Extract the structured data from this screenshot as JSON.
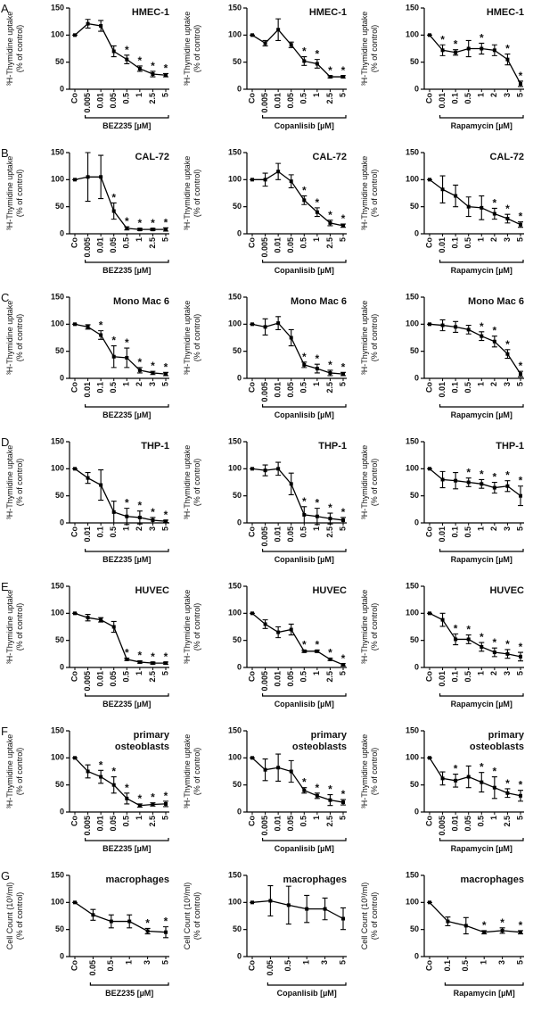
{
  "chart_data": [
    {
      "type": "line",
      "panel": "A",
      "title": [
        "HMEC-1"
      ],
      "ylabel": [
        "³H-Thymidine uptake",
        "(% of control)"
      ],
      "xlabel": "BEZ235 [µM]",
      "categories": [
        "Co",
        "0.005",
        "0.01",
        "0.05",
        "0.5",
        "1",
        "2.5",
        "5"
      ],
      "values": [
        100,
        121,
        117,
        70,
        55,
        38,
        28,
        26
      ],
      "errors": [
        0,
        8,
        10,
        10,
        8,
        5,
        5,
        3
      ],
      "sig": [
        null,
        null,
        null,
        null,
        "*",
        "*",
        "*",
        "*"
      ],
      "ylim": [
        0,
        150
      ],
      "yticks": [
        0,
        50,
        100,
        150
      ],
      "color": "#000000"
    },
    {
      "type": "line",
      "title": [
        "HMEC-1"
      ],
      "ylabel": [
        "³H-Thymidine uptake",
        "(% of control)"
      ],
      "xlabel": "Copanlisib [µM]",
      "categories": [
        "Co",
        "0.005",
        "0.01",
        "0.05",
        "0.5",
        "1",
        "2.5",
        "5"
      ],
      "values": [
        100,
        85,
        110,
        82,
        52,
        47,
        23,
        23
      ],
      "errors": [
        0,
        5,
        20,
        5,
        8,
        8,
        2,
        2
      ],
      "sig": [
        null,
        null,
        null,
        null,
        "*",
        "*",
        "*",
        "*"
      ],
      "ylim": [
        0,
        150
      ],
      "yticks": [
        0,
        50,
        100,
        150
      ],
      "color": "#000000"
    },
    {
      "type": "line",
      "title": [
        "HMEC-1"
      ],
      "ylabel": [
        "³H-Thymidine uptake",
        "(% of control)"
      ],
      "xlabel": "Rapamycin [µM]",
      "categories": [
        "Co",
        "0.01",
        "0.1",
        "0.5",
        "1",
        "2",
        "3",
        "5"
      ],
      "values": [
        100,
        72,
        68,
        75,
        75,
        72,
        55,
        10
      ],
      "errors": [
        0,
        10,
        5,
        15,
        10,
        10,
        10,
        5
      ],
      "sig": [
        null,
        "*",
        "*",
        null,
        "*",
        null,
        "*",
        "*"
      ],
      "ylim": [
        0,
        150
      ],
      "yticks": [
        0,
        50,
        100,
        150
      ],
      "color": "#000000"
    },
    {
      "type": "line",
      "panel": "B",
      "title": [
        "CAL-72"
      ],
      "ylabel": [
        "³H-Thymidine uptake",
        "(% of control)"
      ],
      "xlabel": "BEZ235 [µM]",
      "categories": [
        "Co",
        "0.005",
        "0.01",
        "0.05",
        "0.5",
        "1",
        "2.5",
        "5"
      ],
      "values": [
        100,
        105,
        105,
        42,
        10,
        8,
        8,
        8
      ],
      "errors": [
        0,
        45,
        40,
        15,
        3,
        2,
        2,
        3
      ],
      "sig": [
        null,
        null,
        null,
        "*",
        "*",
        "*",
        "*",
        "*"
      ],
      "ylim": [
        0,
        150
      ],
      "yticks": [
        0,
        50,
        100,
        150
      ],
      "color": "#000000"
    },
    {
      "type": "line",
      "title": [
        "CAL-72"
      ],
      "ylabel": [
        "³H-Thymidine uptake",
        "(% of control)"
      ],
      "xlabel": "Copanlisib [µM]",
      "categories": [
        "Co",
        "0.005",
        "0.01",
        "0.05",
        "0.5",
        "1",
        "2.5",
        "5"
      ],
      "values": [
        100,
        100,
        115,
        97,
        62,
        40,
        20,
        15
      ],
      "errors": [
        0,
        12,
        15,
        12,
        8,
        8,
        5,
        3
      ],
      "sig": [
        null,
        null,
        null,
        null,
        "*",
        "*",
        "*",
        "*"
      ],
      "ylim": [
        0,
        150
      ],
      "yticks": [
        0,
        50,
        100,
        150
      ],
      "color": "#000000"
    },
    {
      "type": "line",
      "title": [
        "CAL-72"
      ],
      "ylabel": [
        "³H-Thymidine uptake",
        "(% of control)"
      ],
      "xlabel": "Rapamycin [µM]",
      "categories": [
        "Co",
        "0.01",
        "0.1",
        "0.5",
        "1",
        "2",
        "3",
        "5"
      ],
      "values": [
        100,
        82,
        70,
        50,
        48,
        37,
        28,
        17
      ],
      "errors": [
        0,
        25,
        20,
        18,
        22,
        10,
        8,
        5
      ],
      "sig": [
        null,
        null,
        null,
        null,
        null,
        "*",
        "*",
        "*"
      ],
      "ylim": [
        0,
        150
      ],
      "yticks": [
        0,
        50,
        100,
        150
      ],
      "color": "#000000"
    },
    {
      "type": "line",
      "panel": "C",
      "title": [
        "Mono Mac 6"
      ],
      "ylabel": [
        "³H-Thymidine uptake",
        "(% of control)"
      ],
      "xlabel": "BEZ235 [µM]",
      "categories": [
        "Co",
        "0.01",
        "0.1",
        "0.5",
        "1",
        "2",
        "3",
        "5"
      ],
      "values": [
        100,
        95,
        80,
        40,
        38,
        15,
        10,
        8
      ],
      "errors": [
        0,
        4,
        8,
        20,
        18,
        5,
        3,
        3
      ],
      "sig": [
        null,
        null,
        "*",
        "*",
        "*",
        "*",
        "*",
        "*"
      ],
      "ylim": [
        0,
        150
      ],
      "yticks": [
        0,
        50,
        100,
        150
      ],
      "color": "#000000"
    },
    {
      "type": "line",
      "title": [
        "Mono Mac 6"
      ],
      "ylabel": [
        "³H-Thymidine uptake",
        "(% of control)"
      ],
      "xlabel": "Copanlisib [µM]",
      "categories": [
        "Co",
        "0.005",
        "0.01",
        "0.05",
        "0.5",
        "1",
        "2.5",
        "5"
      ],
      "values": [
        100,
        95,
        102,
        75,
        25,
        18,
        10,
        8
      ],
      "errors": [
        0,
        15,
        12,
        15,
        5,
        8,
        5,
        3
      ],
      "sig": [
        null,
        null,
        null,
        null,
        "*",
        "*",
        "*",
        "*"
      ],
      "ylim": [
        0,
        150
      ],
      "yticks": [
        0,
        50,
        100,
        150
      ],
      "color": "#000000"
    },
    {
      "type": "line",
      "title": [
        "Mono Mac 6"
      ],
      "ylabel": [
        "³H-Thymidine uptake",
        "(% of control)"
      ],
      "xlabel": "Rapamycin [µM]",
      "categories": [
        "Co",
        "0.01",
        "0.1",
        "0.5",
        "1",
        "2",
        "3",
        "5"
      ],
      "values": [
        100,
        98,
        95,
        90,
        78,
        68,
        45,
        8
      ],
      "errors": [
        0,
        10,
        10,
        8,
        8,
        10,
        8,
        5
      ],
      "sig": [
        null,
        null,
        null,
        null,
        "*",
        "*",
        "*",
        "*"
      ],
      "ylim": [
        0,
        150
      ],
      "yticks": [
        0,
        50,
        100,
        150
      ],
      "color": "#000000"
    },
    {
      "type": "line",
      "panel": "D",
      "title": [
        "THP-1"
      ],
      "ylabel": [
        "³H-Thymidine uptake",
        "(% of control)"
      ],
      "xlabel": "BEZ235 [µM]",
      "categories": [
        "Co",
        "0.01",
        "0.1",
        "0.5",
        "1",
        "2",
        "3",
        "5"
      ],
      "values": [
        100,
        83,
        70,
        20,
        12,
        10,
        5,
        3
      ],
      "errors": [
        0,
        10,
        28,
        20,
        15,
        12,
        5,
        2
      ],
      "sig": [
        null,
        null,
        null,
        null,
        "*",
        "*",
        "*",
        "*"
      ],
      "ylim": [
        0,
        150
      ],
      "yticks": [
        0,
        50,
        100,
        150
      ],
      "color": "#000000"
    },
    {
      "type": "line",
      "title": [
        "THP-1"
      ],
      "ylabel": [
        "³H-Thymidine uptake",
        "(% of control)"
      ],
      "xlabel": "Copanlisib [µM]",
      "categories": [
        "Co",
        "0.005",
        "0.01",
        "0.05",
        "0.5",
        "1",
        "2.5",
        "5"
      ],
      "values": [
        100,
        97,
        100,
        72,
        15,
        12,
        8,
        5
      ],
      "errors": [
        0,
        10,
        12,
        20,
        15,
        15,
        10,
        5
      ],
      "sig": [
        null,
        null,
        null,
        null,
        "*",
        "*",
        "*",
        "*"
      ],
      "ylim": [
        0,
        150
      ],
      "yticks": [
        0,
        50,
        100,
        150
      ],
      "color": "#000000"
    },
    {
      "type": "line",
      "title": [
        "THP-1"
      ],
      "ylabel": [
        "³H-Thymidine uptake",
        "(% of control)"
      ],
      "xlabel": "Rapamycin [µM]",
      "categories": [
        "Co",
        "0.01",
        "0.1",
        "0.5",
        "1",
        "2",
        "3",
        "5"
      ],
      "values": [
        100,
        80,
        78,
        75,
        72,
        65,
        68,
        50
      ],
      "errors": [
        0,
        15,
        15,
        8,
        8,
        10,
        10,
        18
      ],
      "sig": [
        null,
        null,
        null,
        "*",
        "*",
        "*",
        "*",
        "*"
      ],
      "ylim": [
        0,
        150
      ],
      "yticks": [
        0,
        50,
        100,
        150
      ],
      "color": "#000000"
    },
    {
      "type": "line",
      "panel": "E",
      "title": [
        "HUVEC"
      ],
      "ylabel": [
        "³H-Thymidine uptake",
        "(% of control)"
      ],
      "xlabel": "BEZ235 [µM]",
      "categories": [
        "Co",
        "0.005",
        "0.01",
        "0.05",
        "0.5",
        "1",
        "2.5",
        "5"
      ],
      "values": [
        100,
        92,
        88,
        75,
        15,
        10,
        8,
        8
      ],
      "errors": [
        0,
        6,
        4,
        10,
        2,
        2,
        2,
        2
      ],
      "sig": [
        null,
        null,
        null,
        null,
        "*",
        "*",
        "*",
        "*"
      ],
      "ylim": [
        0,
        150
      ],
      "yticks": [
        0,
        50,
        100,
        150
      ],
      "color": "#000000"
    },
    {
      "type": "line",
      "title": [
        "HUVEC"
      ],
      "ylabel": [
        "³H-Thymidine uptake",
        "(% of control)"
      ],
      "xlabel": "Copanlisib [µM]",
      "categories": [
        "Co",
        "0.005",
        "0.01",
        "0.05",
        "0.5",
        "1",
        "2.5",
        "5"
      ],
      "values": [
        100,
        80,
        65,
        70,
        30,
        30,
        15,
        5
      ],
      "errors": [
        0,
        8,
        10,
        10,
        2,
        2,
        2,
        2
      ],
      "sig": [
        null,
        null,
        null,
        null,
        "*",
        "*",
        "*",
        "*"
      ],
      "ylim": [
        0,
        150
      ],
      "yticks": [
        0,
        50,
        100,
        150
      ],
      "color": "#000000"
    },
    {
      "type": "line",
      "title": [
        "HUVEC"
      ],
      "ylabel": [
        "³H-Thymidine uptake",
        "(% of control)"
      ],
      "xlabel": "Rapamycin [µM]",
      "categories": [
        "Co",
        "0.01",
        "0.1",
        "0.5",
        "1",
        "2",
        "3",
        "5"
      ],
      "values": [
        100,
        88,
        52,
        52,
        38,
        28,
        25,
        20
      ],
      "errors": [
        0,
        12,
        10,
        8,
        8,
        8,
        8,
        8
      ],
      "sig": [
        null,
        null,
        "*",
        "*",
        "*",
        "*",
        "*",
        "*"
      ],
      "ylim": [
        0,
        150
      ],
      "yticks": [
        0,
        50,
        100,
        150
      ],
      "color": "#000000"
    },
    {
      "type": "line",
      "panel": "F",
      "title": [
        "primary",
        "osteoblasts"
      ],
      "ylabel": [
        "³H-Thymidine uptake",
        "(% of control)"
      ],
      "xlabel": "BEZ235 [µM]",
      "categories": [
        "Co",
        "0.005",
        "0.01",
        "0.05",
        "0.5",
        "1",
        "2.5",
        "5"
      ],
      "values": [
        100,
        75,
        65,
        50,
        25,
        12,
        14,
        15
      ],
      "errors": [
        0,
        12,
        12,
        15,
        10,
        3,
        3,
        5
      ],
      "sig": [
        null,
        null,
        "*",
        "*",
        "*",
        "*",
        "*",
        "*"
      ],
      "ylim": [
        0,
        150
      ],
      "yticks": [
        0,
        50,
        100,
        150
      ],
      "color": "#000000"
    },
    {
      "type": "line",
      "title": [
        "primary",
        "osteoblasts"
      ],
      "ylabel": [
        "³H-Thymidine uptake",
        "(% of control)"
      ],
      "xlabel": "Copanlisib [µM]",
      "categories": [
        "Co",
        "0.005",
        "0.01",
        "0.05",
        "0.5",
        "1",
        "2.5",
        "5"
      ],
      "values": [
        100,
        78,
        82,
        75,
        40,
        30,
        22,
        18
      ],
      "errors": [
        0,
        20,
        25,
        20,
        5,
        5,
        10,
        5
      ],
      "sig": [
        null,
        null,
        null,
        null,
        "*",
        "*",
        "*",
        "*"
      ],
      "ylim": [
        0,
        150
      ],
      "yticks": [
        0,
        50,
        100,
        150
      ],
      "color": "#000000"
    },
    {
      "type": "line",
      "title": [
        "primary",
        "osteoblasts"
      ],
      "ylabel": [
        "³H-Thymidine uptake",
        "(% of control)"
      ],
      "xlabel": "Rapamycin [µM]",
      "categories": [
        "Co",
        "0.005",
        "0.01",
        "0.05",
        "0.5",
        "1",
        "2.5",
        "5"
      ],
      "values": [
        100,
        62,
        58,
        65,
        55,
        45,
        35,
        30
      ],
      "errors": [
        0,
        12,
        12,
        20,
        18,
        20,
        8,
        10
      ],
      "sig": [
        null,
        null,
        "*",
        null,
        "*",
        "*",
        "*",
        "*"
      ],
      "ylim": [
        0,
        150
      ],
      "yticks": [
        0,
        50,
        100,
        150
      ],
      "color": "#000000"
    },
    {
      "type": "line",
      "panel": "G",
      "title": [
        "macrophages"
      ],
      "ylabel": [
        "Cell Count (10³/ml)",
        "(% of control)"
      ],
      "xlabel": "BEZ235 [µM]",
      "categories": [
        "Co",
        "0.05",
        "0.5",
        "1",
        "3",
        "5"
      ],
      "values": [
        100,
        77,
        65,
        65,
        47,
        45
      ],
      "errors": [
        0,
        10,
        12,
        12,
        5,
        10
      ],
      "sig": [
        null,
        null,
        null,
        null,
        "*",
        "*"
      ],
      "ylim": [
        0,
        150
      ],
      "yticks": [
        0,
        50,
        100,
        150
      ],
      "color": "#000000"
    },
    {
      "type": "line",
      "title": [
        "macrophages"
      ],
      "ylabel": [
        "Cell Count (10³/ml)",
        "(% of control)"
      ],
      "xlabel": "Copanlisib [µM]",
      "categories": [
        "Co",
        "0.05",
        "0.5",
        "1",
        "3",
        "5"
      ],
      "values": [
        100,
        103,
        95,
        88,
        88,
        70
      ],
      "errors": [
        0,
        28,
        35,
        25,
        20,
        20
      ],
      "sig": [
        null,
        null,
        null,
        null,
        null,
        null
      ],
      "ylim": [
        0,
        150
      ],
      "yticks": [
        0,
        50,
        100,
        150
      ],
      "color": "#000000"
    },
    {
      "type": "line",
      "title": [
        "macrophages"
      ],
      "ylabel": [
        "Cell Count (10³/ml)",
        "(% of control)"
      ],
      "xlabel": "Rapamycin [µM]",
      "categories": [
        "Co",
        "0.1",
        "0.5",
        "1",
        "3",
        "5"
      ],
      "values": [
        100,
        65,
        57,
        45,
        48,
        45
      ],
      "errors": [
        0,
        8,
        15,
        3,
        5,
        3
      ],
      "sig": [
        null,
        null,
        null,
        "*",
        "*",
        "*"
      ],
      "ylim": [
        0,
        150
      ],
      "yticks": [
        0,
        50,
        100,
        150
      ],
      "color": "#000000"
    }
  ]
}
